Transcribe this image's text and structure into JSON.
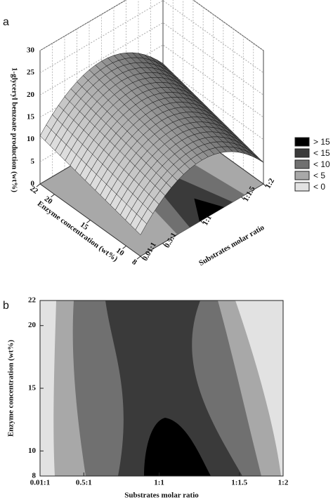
{
  "chart_data": [
    {
      "type": "surface3d",
      "panel_label": "a",
      "z_label": "1-glyceryl benzoate production (wt%)",
      "x_label": "Substrates molar ratio",
      "y_label": "Enzyme concentration (wt%)",
      "categories": [
        "0.01:1",
        "0.5:1",
        "1:1",
        "1:1.5",
        "1:2"
      ],
      "zlim": [
        0,
        30
      ],
      "zticks": [
        0,
        5,
        10,
        15,
        20,
        25,
        30
      ],
      "ylim": [
        8,
        22
      ],
      "yticks": [
        8,
        10,
        15,
        20,
        22
      ],
      "legend": [
        {
          "label": "> 15",
          "color": "#000000"
        },
        {
          "label": "< 15",
          "color": "#3a3a3a"
        },
        {
          "label": "< 10",
          "color": "#707070"
        },
        {
          "label": "< 5",
          "color": "#a8a8a8"
        },
        {
          "label": "< 0",
          "color": "#e2e2e2"
        }
      ]
    },
    {
      "type": "contour",
      "panel_label": "b",
      "x_label": "Substrates molar ratio",
      "y_label": "Enzyme concentration (wt%)",
      "categories": [
        "0.01:1",
        "0.5:1",
        "1:1",
        "1:1.5",
        "1:2"
      ],
      "ylim": [
        8,
        22
      ],
      "yticks": [
        8,
        10,
        15,
        20,
        22
      ]
    }
  ]
}
